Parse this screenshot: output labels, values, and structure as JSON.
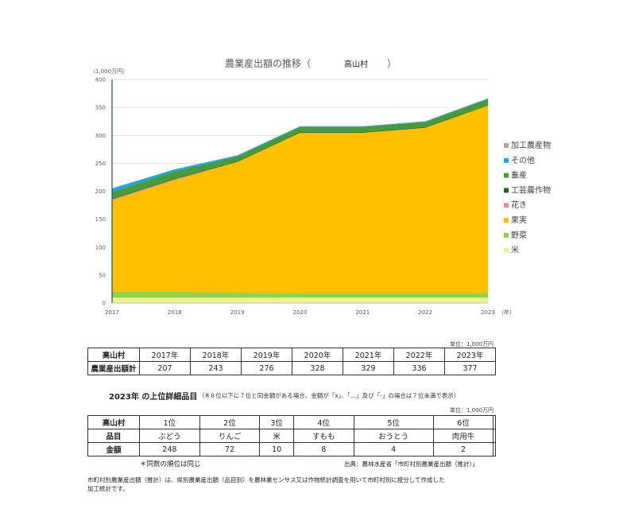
{
  "chart_data": {
    "type": "area",
    "title": "農業産出額の推移（",
    "title_village": "高山村",
    "title_close": "）",
    "y_unit": "（1,000万円）",
    "x_unit": "（年）",
    "ylim": [
      0,
      400
    ],
    "yticks": [
      0,
      50,
      100,
      150,
      200,
      250,
      300,
      350,
      400
    ],
    "x": [
      "2017",
      "2018",
      "2019",
      "2020",
      "2021",
      "2022",
      "2023"
    ],
    "stacked": true,
    "legend_position": "right",
    "series": [
      {
        "name": "米",
        "color": "#f2f28c",
        "values": [
          10,
          10,
          10,
          10,
          10,
          10,
          10
        ]
      },
      {
        "name": "野菜",
        "color": "#92d050",
        "values": [
          10,
          10,
          9,
          8,
          8,
          8,
          8
        ]
      },
      {
        "name": "果実",
        "color": "#ffc000",
        "values": [
          164,
          200,
          234,
          287,
          287,
          296,
          336
        ]
      },
      {
        "name": "花き",
        "color": "#f28c8c",
        "values": [
          2,
          2,
          0,
          0,
          0,
          0,
          0
        ]
      },
      {
        "name": "工芸農作物",
        "color": "#1e6b1e",
        "values": [
          1,
          1,
          1,
          1,
          1,
          1,
          1
        ]
      },
      {
        "name": "畜産",
        "color": "#4a9a3a",
        "values": [
          12,
          12,
          8,
          9,
          9,
          9,
          10
        ]
      },
      {
        "name": "その他",
        "color": "#1ea7d8",
        "values": [
          6,
          4,
          2,
          1,
          1,
          1,
          1
        ]
      },
      {
        "name": "加工農産物",
        "color": "#a6a6a6",
        "values": [
          0,
          0,
          0,
          0,
          0,
          0,
          0
        ]
      }
    ]
  },
  "table1": {
    "unit": "単位：1,000万円",
    "header_label": "高山村",
    "years": [
      "2017年",
      "2018年",
      "2019年",
      "2020年",
      "2021年",
      "2022年",
      "2023年"
    ],
    "row_label": "農業産出額計",
    "values": [
      "207",
      "243",
      "276",
      "328",
      "329",
      "336",
      "377"
    ]
  },
  "section2": {
    "title": "2023年 の上位詳細品目",
    "note": "（※８位以下に７位と同金額がある場合、金額が「x」、「…」及び「-」の場合は７位未満で表示）",
    "unit": "単位：1,000万円"
  },
  "table2": {
    "header_label": "高山村",
    "ranks": [
      "1位",
      "2位",
      "3位",
      "4位",
      "5位",
      "6位",
      ""
    ],
    "item_label": "品目",
    "items": [
      "ぶどう",
      "りんご",
      "米",
      "すもも",
      "おうとう",
      "肉用牛",
      ""
    ],
    "amount_label": "金額",
    "amounts": [
      "248",
      "72",
      "10",
      "8",
      "4",
      "2",
      ""
    ]
  },
  "footer": {
    "same_rank_note": "＊同数の順位は同じ",
    "source": "出典：農林水産省「市町村別農業産出額（推計）」",
    "desc_line1": "市町村別農業産出額（推計）は、県別農業産出額（品目別）を農林業センサス又は作物統計調査を用いて市町村別に按分して作成した",
    "desc_line2": "加工統計です。"
  }
}
